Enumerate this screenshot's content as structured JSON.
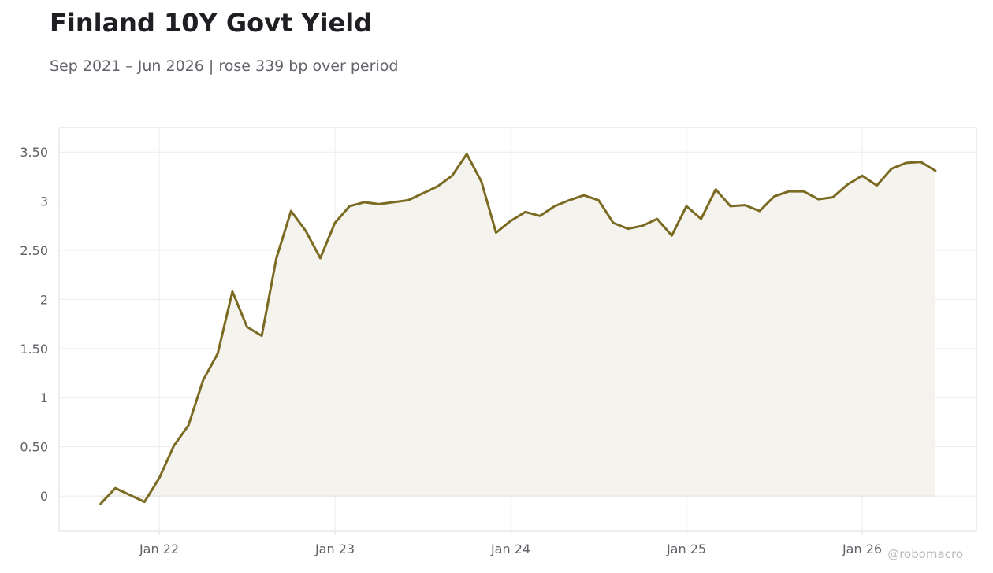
{
  "title": "Finland 10Y Govt Yield",
  "subtitle": "Sep 2021 – Jun 2026 | rose 339 bp over period",
  "watermark": "@robomacro",
  "colors": {
    "line": "#7a6a22",
    "fill": "#f3f2ed",
    "grid": "#ececec",
    "frame": "#dddddd",
    "tick_text": "#5f6166"
  },
  "chart_data": {
    "type": "area",
    "x": [
      "2021-09",
      "2021-10",
      "2021-11",
      "2021-12",
      "2022-01",
      "2022-02",
      "2022-03",
      "2022-04",
      "2022-05",
      "2022-06",
      "2022-07",
      "2022-08",
      "2022-09",
      "2022-10",
      "2022-11",
      "2022-12",
      "2023-01",
      "2023-02",
      "2023-03",
      "2023-04",
      "2023-05",
      "2023-06",
      "2023-07",
      "2023-08",
      "2023-09",
      "2023-10",
      "2023-11",
      "2023-12",
      "2024-01",
      "2024-02",
      "2024-03",
      "2024-04",
      "2024-05",
      "2024-06",
      "2024-07",
      "2024-08",
      "2024-09",
      "2024-10",
      "2024-11",
      "2024-12",
      "2025-01",
      "2025-02",
      "2025-03",
      "2025-04",
      "2025-05",
      "2025-06",
      "2025-07",
      "2025-08",
      "2025-09",
      "2025-10",
      "2025-11",
      "2025-12",
      "2026-01",
      "2026-02",
      "2026-03",
      "2026-04",
      "2026-05",
      "2026-06"
    ],
    "series": [
      {
        "values": [
          -0.08,
          0.08,
          0.01,
          -0.06,
          0.18,
          0.51,
          0.72,
          1.18,
          1.45,
          2.08,
          1.72,
          1.63,
          2.42,
          2.9,
          2.7,
          2.42,
          2.78,
          2.95,
          2.99,
          2.97,
          2.99,
          3.01,
          3.08,
          3.15,
          3.26,
          3.48,
          3.2,
          2.68,
          2.8,
          2.89,
          2.85,
          2.95,
          3.01,
          3.06,
          3.01,
          2.78,
          2.72,
          2.75,
          2.82,
          2.65,
          2.95,
          2.82,
          3.12,
          2.95,
          2.96,
          2.9,
          3.05,
          3.1,
          3.1,
          3.02,
          3.04,
          3.17,
          3.26,
          3.16,
          3.33,
          3.39,
          3.4,
          3.31
        ]
      }
    ],
    "x_ticks": [
      "Jan 22",
      "Jan 23",
      "Jan 24",
      "Jan 25",
      "Jan 26"
    ],
    "y_ticks": [
      "0",
      "0.50",
      "1",
      "1.50",
      "2",
      "2.50",
      "3",
      "3.50"
    ],
    "ylim": [
      -0.36,
      3.75
    ],
    "grid": true,
    "xlabel": "",
    "ylabel": ""
  }
}
